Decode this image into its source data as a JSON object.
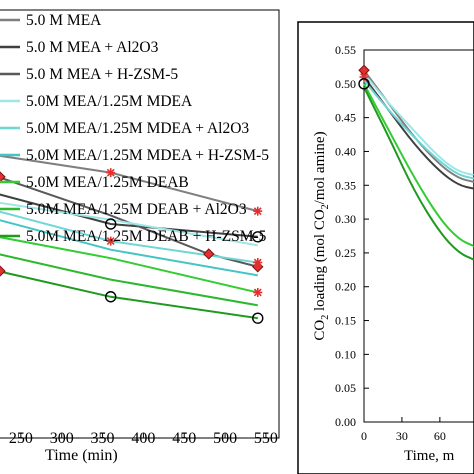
{
  "chart_data": [
    {
      "type": "line",
      "xlabel": "Time  (min)",
      "ylabel": "",
      "xticks": [
        "250",
        "300",
        "350",
        "400",
        "450",
        "500",
        "550"
      ],
      "xlim": [
        222,
        566
      ],
      "ylim": [
        0.0,
        1.0
      ],
      "legend_position": "top-left",
      "series": [
        {
          "name": "5.0 M MEA",
          "color": "#7f7f7f",
          "marker": "none",
          "x": [
            222,
            360,
            540
          ],
          "y": [
            0.66,
            0.62,
            0.53
          ]
        },
        {
          "name": "5.0 M MEA + Al2O3",
          "color": "#404040",
          "marker": "circle",
          "x": [
            222,
            360,
            540
          ],
          "y": [
            0.57,
            0.5,
            0.47
          ]
        },
        {
          "name": "5.0 M MEA + H-ZSM-5",
          "color": "#595959",
          "marker": "diamond",
          "x": [
            222,
            360,
            480,
            540
          ],
          "y": [
            0.61,
            0.52,
            0.43,
            0.4
          ]
        },
        {
          "name": "5.0M MEA/1.25M MDEA",
          "color": "#9ee6e6",
          "marker": "none",
          "x": [
            222,
            360,
            540
          ],
          "y": [
            0.55,
            0.51,
            0.45
          ]
        },
        {
          "name": "5.0M MEA/1.25M MDEA + Al2O3",
          "color": "#6fd6d6",
          "marker": "star",
          "x": [
            222,
            360,
            540
          ],
          "y": [
            0.53,
            0.46,
            0.41
          ]
        },
        {
          "name": "5.0M MEA/1.25M MDEA + H-ZSM-5",
          "color": "#44c4c4",
          "marker": "none",
          "x": [
            222,
            360,
            540
          ],
          "y": [
            0.51,
            0.44,
            0.38
          ]
        },
        {
          "name": "5.0M MEA/1.25M DEAB",
          "color": "#33cc33",
          "marker": "star",
          "x": [
            222,
            360,
            540
          ],
          "y": [
            0.47,
            0.42,
            0.34
          ]
        },
        {
          "name": "5.0M MEA/1.25M DEAB + Al2O3",
          "color": "#2db82d",
          "marker": "none",
          "x": [
            222,
            360,
            540
          ],
          "y": [
            0.43,
            0.37,
            0.31
          ]
        },
        {
          "name": "5.0M MEA/1.25M DEAB + H-ZSM-5",
          "color": "#1f9a1f",
          "marker": "circle",
          "x": [
            222,
            360,
            540
          ],
          "y": [
            0.39,
            0.33,
            0.28
          ]
        }
      ],
      "markers": [
        {
          "series": "5.0 M MEA",
          "symbol": "star",
          "x": 360,
          "y": 0.62
        },
        {
          "series": "5.0 M MEA",
          "symbol": "star",
          "x": 540,
          "y": 0.53
        },
        {
          "series": "5.0 M MEA + Al2O3",
          "symbol": "circle",
          "x": 360,
          "y": 0.5
        },
        {
          "series": "5.0 M MEA + Al2O3",
          "symbol": "circle",
          "x": 540,
          "y": 0.47
        },
        {
          "series": "5.0 M MEA + H-ZSM-5",
          "symbol": "diamond",
          "x": 480,
          "y": 0.43
        },
        {
          "series": "5.0 M MEA + H-ZSM-5",
          "symbol": "diamond",
          "x": 540,
          "y": 0.4
        },
        {
          "series": "5.0M MEA/1.25M MDEA + Al2O3",
          "symbol": "star",
          "x": 360,
          "y": 0.46
        },
        {
          "series": "5.0M MEA/1.25M MDEA + Al2O3",
          "symbol": "star",
          "x": 540,
          "y": 0.41
        },
        {
          "series": "5.0M MEA/1.25M DEAB",
          "symbol": "star",
          "x": 540,
          "y": 0.34
        },
        {
          "series": "5.0M MEA/1.25M DEAB + H-ZSM-5",
          "symbol": "circle",
          "x": 360,
          "y": 0.33
        },
        {
          "series": "5.0M MEA/1.25M DEAB + H-ZSM-5",
          "symbol": "circle",
          "x": 540,
          "y": 0.28
        }
      ]
    },
    {
      "type": "line",
      "xlabel": "Time, m",
      "ylabel": "CO2 loading (mol CO2/mol amine)",
      "xticks": [
        "0",
        "30",
        "60"
      ],
      "yticks": [
        "0.00",
        "0.05",
        "0.10",
        "0.15",
        "0.20",
        "0.25",
        "0.30",
        "0.35",
        "0.40",
        "0.45",
        "0.50",
        "0.55"
      ],
      "xlim": [
        0,
        87
      ],
      "ylim": [
        0.0,
        0.55
      ],
      "series": [
        {
          "name": "5.0 M MEA",
          "color": "#7f7f7f",
          "x": [
            0,
            20,
            40,
            60,
            75,
            87
          ],
          "y": [
            0.52,
            0.47,
            0.42,
            0.38,
            0.36,
            0.355
          ]
        },
        {
          "name": "5.0 M MEA + Al2O3",
          "color": "#404040",
          "x": [
            0,
            20,
            40,
            60,
            75,
            87
          ],
          "y": [
            0.51,
            0.46,
            0.41,
            0.37,
            0.35,
            0.345
          ]
        },
        {
          "name": "5.0M MEA/1.25M MDEA",
          "color": "#9ee6e6",
          "x": [
            0,
            20,
            40,
            60,
            75,
            87
          ],
          "y": [
            0.515,
            0.47,
            0.43,
            0.39,
            0.37,
            0.365
          ]
        },
        {
          "name": "5.0M MEA/1.25M MDEA + Al2O3",
          "color": "#6fd6d6",
          "x": [
            0,
            20,
            40,
            60,
            75,
            87
          ],
          "y": [
            0.505,
            0.46,
            0.42,
            0.385,
            0.365,
            0.36
          ]
        },
        {
          "name": "5.0M MEA/1.25M DEAB",
          "color": "#33cc33",
          "x": [
            0,
            20,
            40,
            60,
            75,
            87
          ],
          "y": [
            0.5,
            0.43,
            0.36,
            0.3,
            0.27,
            0.26
          ]
        },
        {
          "name": "5.0M MEA/1.25M DEAB + H-ZSM-5",
          "color": "#1f9a1f",
          "x": [
            0,
            20,
            40,
            60,
            75,
            87
          ],
          "y": [
            0.495,
            0.42,
            0.34,
            0.28,
            0.25,
            0.24
          ]
        }
      ],
      "markers": [
        {
          "symbol": "diamond",
          "x": 0,
          "y": 0.52
        },
        {
          "symbol": "star",
          "x": 0,
          "y": 0.51
        },
        {
          "symbol": "circle",
          "x": 0,
          "y": 0.5
        }
      ]
    }
  ]
}
